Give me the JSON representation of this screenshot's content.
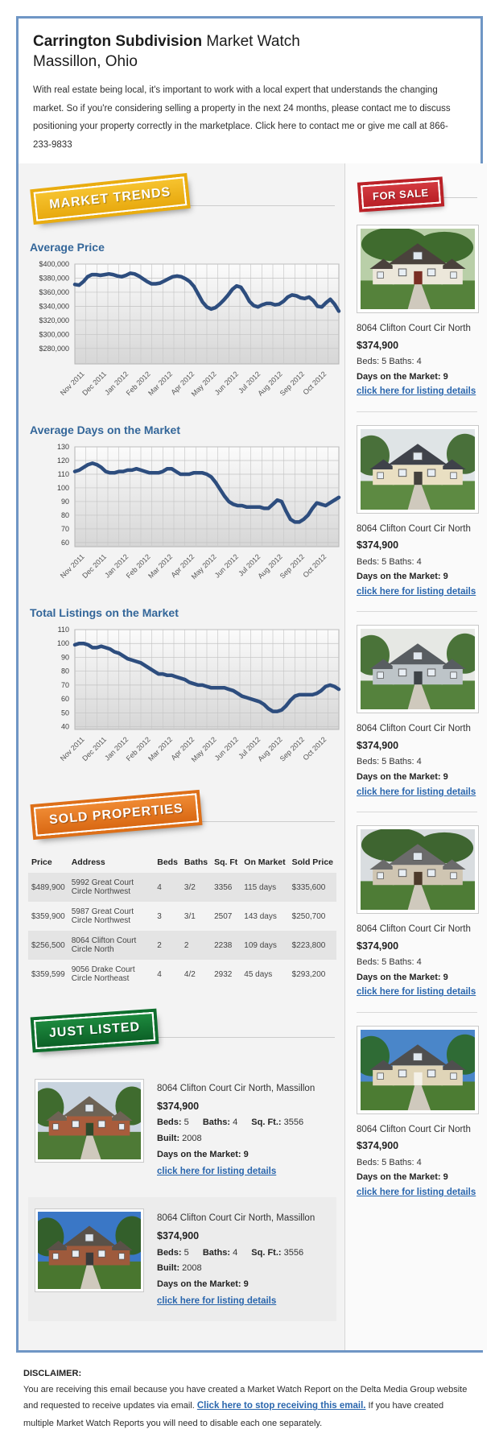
{
  "header": {
    "title_bold": "Carrington Subdivision",
    "title_rest": " Market Watch",
    "subtitle": "Massillon, Ohio",
    "intro": "With real estate being local, it's important to work with a local expert that understands the changing market. So if you're considering selling a property in the next 24 months, please contact me to discuss positioning your property correctly in the marketplace. Click here to contact me or give me call at 866-233-9833"
  },
  "badges": {
    "market_trends": "MARKET TRENDS",
    "for_sale": "FOR SALE",
    "sold_properties": "SOLD PROPERTIES",
    "just_listed": "JUST LISTED"
  },
  "colors": {
    "container_border": "#6f96c5",
    "heading_blue": "#336699",
    "link_blue": "#2a66ad",
    "chart_line": "#2d4d7e",
    "badge_gold": "#e9ac10",
    "badge_red": "#bb2228",
    "badge_orange": "#dd6f18",
    "badge_green": "#0e6e2d"
  },
  "chart_data": [
    {
      "type": "line",
      "title": "Average Price",
      "categories": [
        "Nov 2011",
        "Dec 2011",
        "Jan 2012",
        "Feb 2012",
        "Mar 2012",
        "Apr 2012",
        "May 2012",
        "Jun 2012",
        "Jul 2012",
        "Aug 2012",
        "Sep 2012",
        "Oct 2012"
      ],
      "values": [
        371000,
        370000,
        375000,
        382000,
        385000,
        385000,
        384000,
        385000,
        386000,
        385000,
        383000,
        382000,
        384000,
        387000,
        386000,
        383000,
        379000,
        375000,
        372000,
        372000,
        373000,
        376000,
        379000,
        382000,
        383000,
        382000,
        379000,
        375000,
        368000,
        357000,
        346000,
        339000,
        336000,
        338000,
        343000,
        349000,
        356000,
        364000,
        369000,
        367000,
        358000,
        347000,
        341000,
        339000,
        342000,
        344000,
        344000,
        342000,
        343000,
        347000,
        353000,
        356000,
        355000,
        352000,
        351000,
        353000,
        348000,
        340000,
        339000,
        345000,
        350000,
        343000,
        333000
      ],
      "ylim": [
        258000,
        400000
      ],
      "yticks": [
        280000,
        300000,
        320000,
        340000,
        360000,
        380000,
        400000
      ],
      "ytick_labels": [
        "$280,000",
        "$300,000",
        "$320,000",
        "$340,000",
        "$360,000",
        "$380,000",
        "$400,000"
      ],
      "xlabel": "",
      "ylabel": "",
      "grid": true,
      "legend": "none"
    },
    {
      "type": "line",
      "title": "Average Days on the Market",
      "categories": [
        "Nov 2011",
        "Dec 2011",
        "Jan 2012",
        "Feb 2012",
        "Mar 2012",
        "Apr 2012",
        "May 2012",
        "Jun 2012",
        "Jul 2012",
        "Aug 2012",
        "Sep 2012",
        "Oct 2012"
      ],
      "values": [
        112,
        113,
        115,
        117,
        118,
        117,
        115,
        112,
        111,
        111,
        112,
        112,
        113,
        113,
        114,
        113,
        112,
        111,
        111,
        111,
        112,
        114,
        114,
        112,
        110,
        110,
        110,
        111,
        111,
        111,
        110,
        108,
        104,
        99,
        94,
        90,
        88,
        87,
        87,
        86,
        86,
        86,
        86,
        85,
        85,
        88,
        91,
        90,
        83,
        77,
        75,
        75,
        77,
        80,
        85,
        89,
        88,
        87,
        89,
        91,
        93
      ],
      "ylim": [
        57,
        130
      ],
      "yticks": [
        60,
        70,
        80,
        90,
        100,
        110,
        120,
        130
      ],
      "ytick_labels": [
        "60",
        "70",
        "80",
        "90",
        "100",
        "110",
        "120",
        "130"
      ],
      "xlabel": "",
      "ylabel": "",
      "grid": true,
      "legend": "none"
    },
    {
      "type": "line",
      "title": "Total Listings on the Market",
      "categories": [
        "Nov 2011",
        "Dec 2011",
        "Jan 2012",
        "Feb 2012",
        "Mar 2012",
        "Apr 2012",
        "May 2012",
        "Jun 2012",
        "Jul 2012",
        "Aug 2012",
        "Sep 2012",
        "Oct 2012"
      ],
      "values": [
        99,
        100,
        100,
        99,
        97,
        97,
        98,
        97,
        96,
        94,
        93,
        91,
        89,
        88,
        87,
        86,
        84,
        82,
        80,
        78,
        78,
        77,
        77,
        76,
        75,
        74,
        72,
        71,
        70,
        70,
        69,
        68,
        68,
        68,
        68,
        67,
        66,
        64,
        62,
        61,
        60,
        59,
        58,
        56,
        53,
        51,
        51,
        52,
        55,
        59,
        62,
        63,
        63,
        63,
        63,
        64,
        66,
        69,
        70,
        69,
        67
      ],
      "ylim": [
        38,
        110
      ],
      "yticks": [
        40,
        50,
        60,
        70,
        80,
        90,
        100,
        110
      ],
      "ytick_labels": [
        "40",
        "50",
        "60",
        "70",
        "80",
        "90",
        "100",
        "110"
      ],
      "xlabel": "",
      "ylabel": "",
      "grid": true,
      "legend": "none"
    }
  ],
  "sold_table": {
    "columns": [
      "Price",
      "Address",
      "Beds",
      "Baths",
      "Sq. Ft",
      "On Market",
      "Sold Price"
    ],
    "rows": [
      [
        "$489,900",
        "5992 Great Court Circle Northwest",
        "4",
        "3/2",
        "3356",
        "115 days",
        "$335,600"
      ],
      [
        "$359,900",
        "5987 Great Court Circle Northwest",
        "3",
        "3/1",
        "2507",
        "143 days",
        "$250,700"
      ],
      [
        "$256,500",
        "8064 Clifton Court Circle North",
        "2",
        "2",
        "2238",
        "109 days",
        "$223,800"
      ],
      [
        "$359,599",
        "9056 Drake Court Circle Northeast",
        "4",
        "4/2",
        "2932",
        "45 days",
        "$293,200"
      ]
    ]
  },
  "sidebar": {
    "listings": [
      {
        "address": "8064 Clifton Court Cir North",
        "price": "$374,900",
        "beds_line": "Beds: 5 Baths: 4",
        "days_line": "Days on the Market: 9",
        "link": "click here for listing details"
      },
      {
        "address": "8064 Clifton Court Cir North",
        "price": "$374,900",
        "beds_line": "Beds: 5 Baths: 4",
        "days_line": "Days on the Market: 9",
        "link": "click here for listing details"
      },
      {
        "address": "8064 Clifton Court Cir North",
        "price": "$374,900",
        "beds_line": "Beds: 5 Baths: 4",
        "days_line": "Days on the Market: 9",
        "link": "click here for listing details"
      },
      {
        "address": "8064 Clifton Court Cir North",
        "price": "$374,900",
        "beds_line": "Beds: 5 Baths: 4",
        "days_line": "Days on the Market: 9",
        "link": "click here for listing details"
      },
      {
        "address": "8064 Clifton Court Cir North",
        "price": "$374,900",
        "beds_line": "Beds: 5 Baths: 4",
        "days_line": "Days on the Market: 9",
        "link": "click here for listing details"
      }
    ]
  },
  "just_listed": {
    "items": [
      {
        "address": "8064 Clifton Court Cir North, Massillon",
        "price": "$374,900",
        "specs": [
          {
            "label": "Beds:",
            "value": "5"
          },
          {
            "label": "Baths:",
            "value": "4"
          },
          {
            "label": "Sq. Ft.:",
            "value": "3556"
          },
          {
            "label": "Built:",
            "value": "2008"
          }
        ],
        "days_line": "Days on the Market: 9",
        "link": "click here for listing details"
      },
      {
        "address": "8064 Clifton Court Cir North, Massillon",
        "price": "$374,900",
        "specs": [
          {
            "label": "Beds:",
            "value": "5"
          },
          {
            "label": "Baths:",
            "value": "4"
          },
          {
            "label": "Sq. Ft.:",
            "value": "3556"
          },
          {
            "label": "Built:",
            "value": "2008"
          }
        ],
        "days_line": "Days on the Market: 9",
        "link": "click here for listing details"
      }
    ]
  },
  "disclaimer": {
    "heading": "DISCLAIMER:",
    "part1": "You are receiving this email because you have created a Market Watch Report on the Delta Media Group website and requested to receive updates via email. ",
    "link": "Click here to stop receiving this email.",
    "part2": " If you have created multiple Market Watch Reports you will need to disable each one separately."
  },
  "photos": {
    "sidebar": [
      {
        "sky": "#b9cfa8",
        "tree": "#3f6b2e",
        "big_trees": true,
        "grass": "#55823b",
        "roof": "#4a423c",
        "wall": "#ece7da",
        "door": "#7a2e24"
      },
      {
        "sky": "#dfe4e6",
        "tree": "#49703a",
        "big_trees": false,
        "grass": "#5d8a42",
        "roof": "#3f424a",
        "wall": "#e9dfc2",
        "door": "#44413c"
      },
      {
        "sky": "#e6e8e4",
        "tree": "#4a7339",
        "big_trees": false,
        "grass": "#55823d",
        "roof": "#585d61",
        "wall": "#bdc4c8",
        "door": "#3e4347"
      },
      {
        "sky": "#d9dde0",
        "tree": "#3e6530",
        "big_trees": true,
        "grass": "#4e7c36",
        "roof": "#6b6b6b",
        "wall": "#cfc5b2",
        "door": "#4c3a2a"
      },
      {
        "sky": "#4a86c9",
        "tree": "#2f6b35",
        "big_trees": false,
        "grass": "#4c7c33",
        "roof": "#4f4f4f",
        "wall": "#e0d5b8",
        "door": "#f4f1e8"
      }
    ],
    "just_listed": [
      {
        "sky": "#c9d4df",
        "tree": "#3f6b2e",
        "big_trees": false,
        "grass": "#4e7a36",
        "roof": "#6e6355",
        "wall": "#a85c3c",
        "door": "#2f4a2c"
      },
      {
        "sky": "#3a77c6",
        "tree": "#335f2b",
        "big_trees": false,
        "grass": "#49762f",
        "roof": "#5a5148",
        "wall": "#9e5a3c",
        "door": "#3a3a3a"
      }
    ]
  }
}
